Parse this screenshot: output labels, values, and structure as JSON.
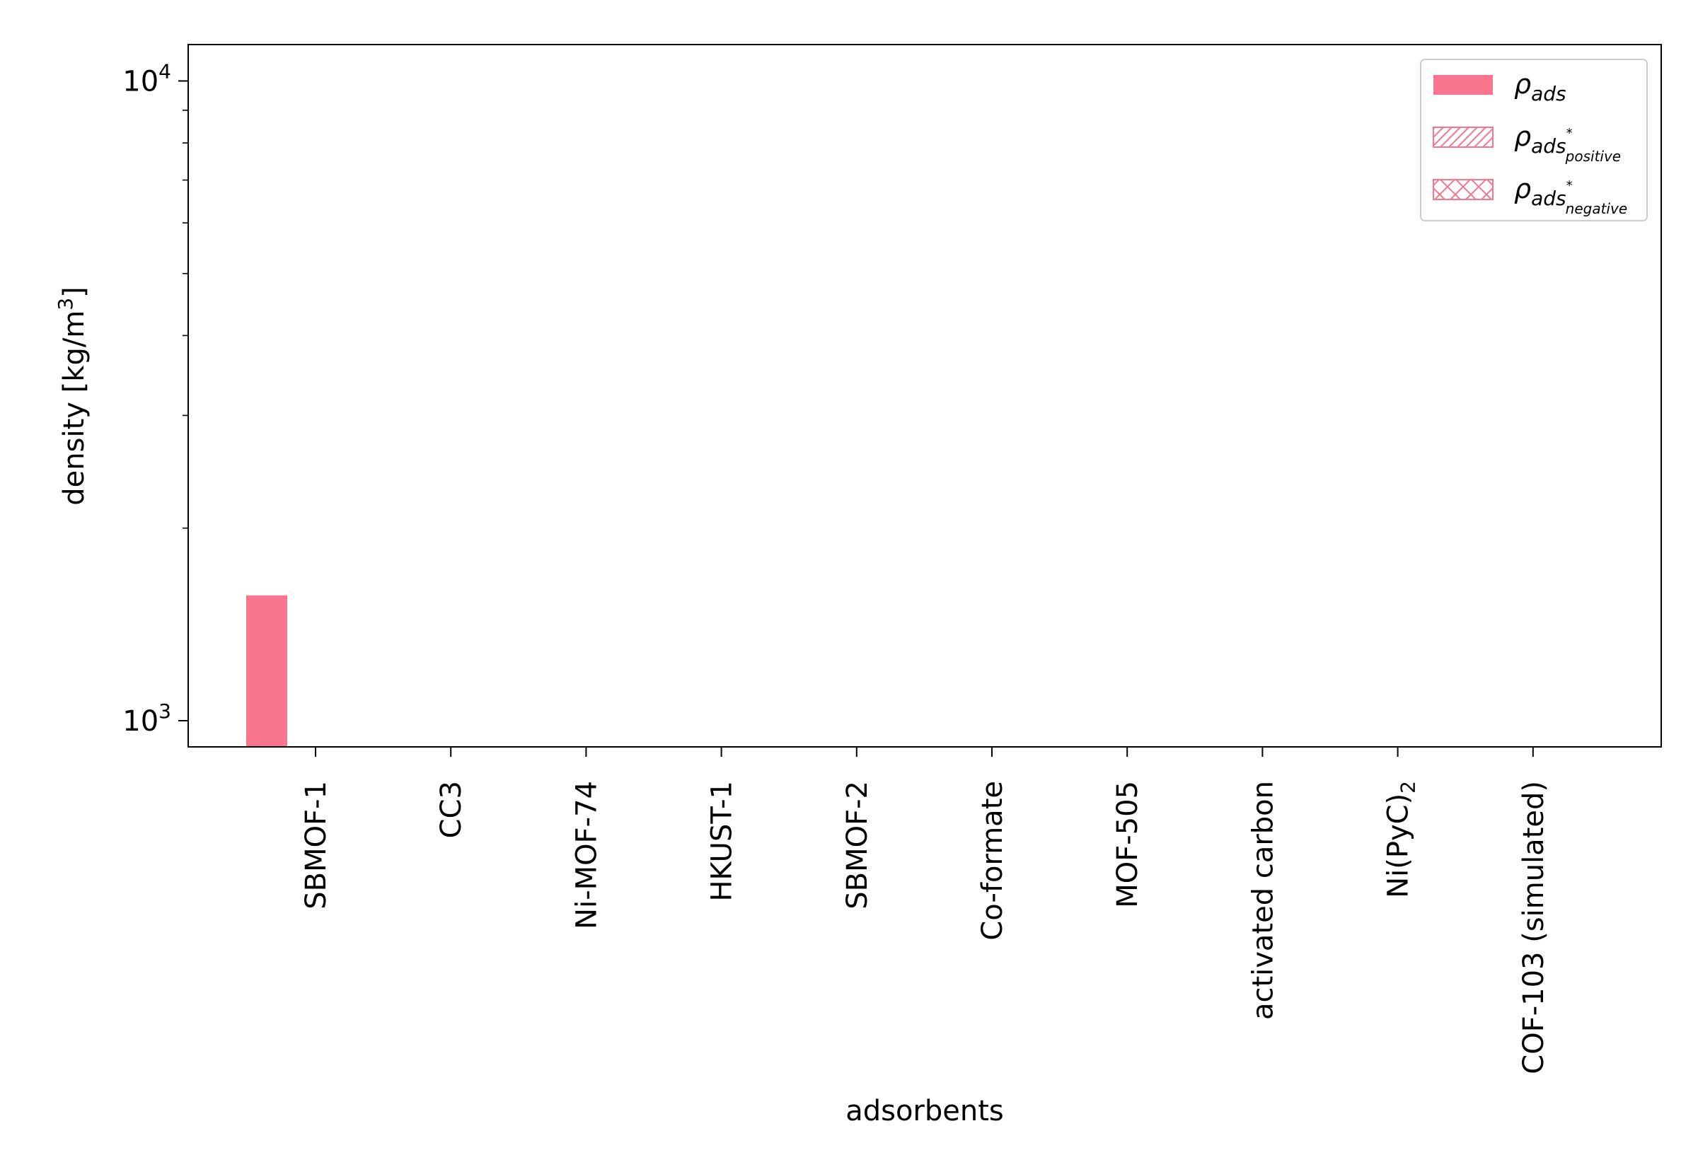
{
  "chart_data": {
    "type": "bar",
    "title": "",
    "xlabel": "adsorbents",
    "ylabel": "density [kg/m",
    "ylabel_sup": "3",
    "ylabel_end": "]",
    "yscale": "log",
    "ylim": [
      910,
      11400
    ],
    "yticks": [
      {
        "value": 1000,
        "base": "10",
        "exp": "3"
      },
      {
        "value": 10000,
        "base": "10",
        "exp": "4"
      }
    ],
    "categories": [
      {
        "label": "SBMOF-1"
      },
      {
        "label": "CC3"
      },
      {
        "label": "Ni-MOF-74"
      },
      {
        "label": "HKUST-1"
      },
      {
        "label": "SBMOF-2"
      },
      {
        "label": "Co-formate"
      },
      {
        "label": "MOF-505"
      },
      {
        "label": "activated carbon"
      },
      {
        "label": "Ni(PyC)",
        "sub": "2"
      },
      {
        "label": "COF-103 (simulated)"
      }
    ],
    "series": [
      {
        "name": "ρ",
        "sub": "ads",
        "style": "solid",
        "color": "#f7768e",
        "values": [
          1570,
          null,
          null,
          null,
          null,
          null,
          null,
          null,
          null,
          null
        ]
      },
      {
        "name": "ρ",
        "sub": "ads",
        "sup": "*",
        "subsub": "positive",
        "style": "hatch-diagonal",
        "color": "#f7768e",
        "values": [
          null,
          null,
          null,
          null,
          null,
          null,
          null,
          null,
          null,
          null
        ]
      },
      {
        "name": "ρ",
        "sub": "ads",
        "sup": "*",
        "subsub": "negative",
        "style": "hatch-cross",
        "color": "#f7768e",
        "values": [
          null,
          null,
          null,
          null,
          null,
          null,
          null,
          null,
          null,
          null
        ]
      }
    ],
    "legend": "top-right",
    "grid": false
  }
}
